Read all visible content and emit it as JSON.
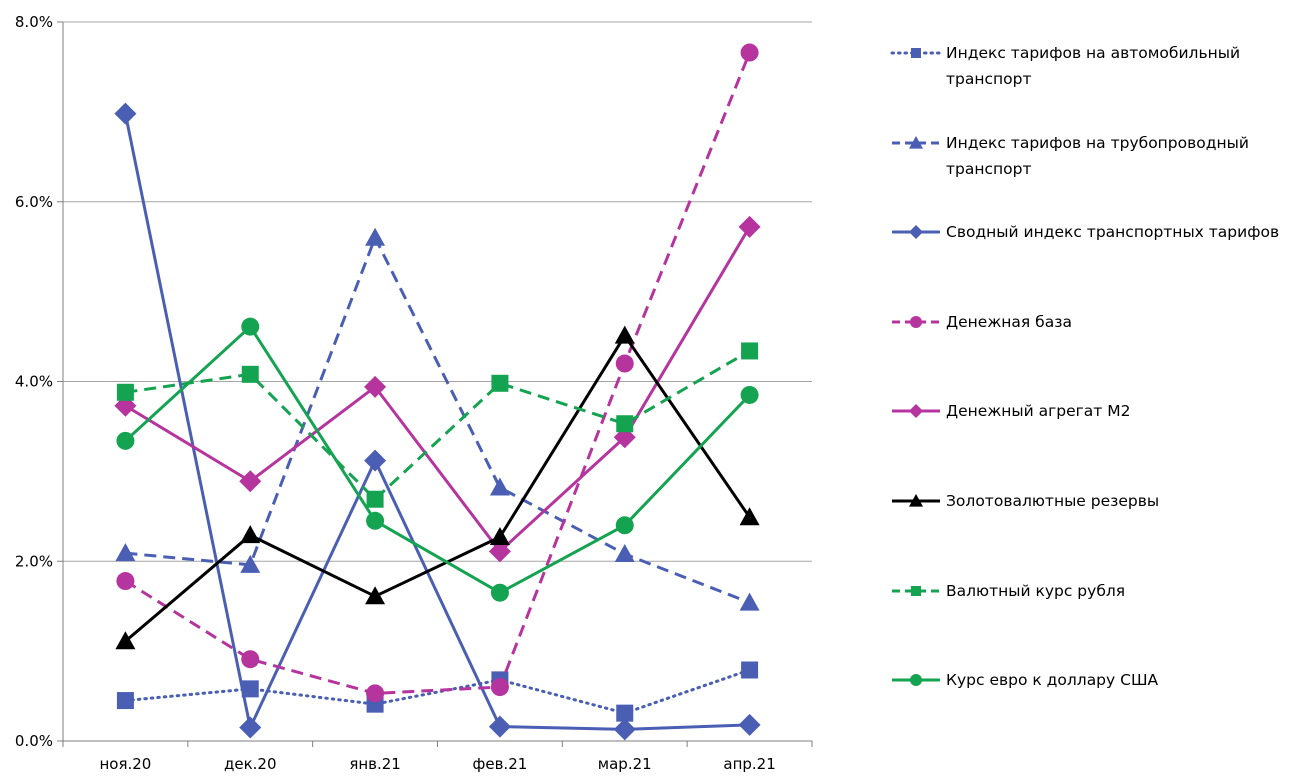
{
  "chart_data": {
    "type": "line",
    "title": "",
    "xlabel": "",
    "ylabel": "",
    "categories": [
      "ноя.20",
      "дек.20",
      "янв.21",
      "фев.21",
      "мар.21",
      "апр.21"
    ],
    "y_ticks": [
      "0.0%",
      "2.0%",
      "4.0%",
      "6.0%",
      "8.0%"
    ],
    "ylim": [
      0,
      8
    ],
    "grid": true,
    "legend_position": "right",
    "series": [
      {
        "name": "Индекс тарифов на автомобильный транспорт",
        "values": [
          0.45,
          0.58,
          0.41,
          0.68,
          0.31,
          0.79
        ],
        "color": "#4a5fb4",
        "dash": "dotted",
        "marker": "square"
      },
      {
        "name": "Индекс тарифов на трубопроводный транспорт",
        "values": [
          2.09,
          1.96,
          5.6,
          2.82,
          2.08,
          1.54
        ],
        "color": "#4a5fb4",
        "dash": "dashed",
        "marker": "triangle"
      },
      {
        "name": "Сводный индекс транспортных тарифов",
        "values": [
          6.98,
          0.15,
          3.12,
          0.16,
          0.13,
          0.18
        ],
        "color": "#4a5fb4",
        "dash": "solid",
        "marker": "diamond"
      },
      {
        "name": "Денежная база",
        "values": [
          1.78,
          0.91,
          0.53,
          0.6,
          4.2,
          7.66
        ],
        "color": "#b5349d",
        "dash": "dashed",
        "marker": "circle"
      },
      {
        "name": "Денежный агрегат М2",
        "values": [
          3.73,
          2.89,
          3.94,
          2.11,
          3.38,
          5.72
        ],
        "color": "#b5349d",
        "dash": "solid",
        "marker": "diamond"
      },
      {
        "name": "Золотовалютные резервы",
        "values": [
          1.11,
          2.29,
          1.61,
          2.27,
          4.51,
          2.49
        ],
        "color": "#000000",
        "dash": "solid",
        "marker": "triangle"
      },
      {
        "name": "Валютный курс рубля",
        "values": [
          3.88,
          4.08,
          2.69,
          3.98,
          3.53,
          4.34
        ],
        "color": "#14a350",
        "dash": "dashed",
        "marker": "square"
      },
      {
        "name": "Курс евро к доллару США",
        "values": [
          3.34,
          4.61,
          2.45,
          1.65,
          2.4,
          3.85
        ],
        "color": "#14a350",
        "dash": "solid",
        "marker": "circle"
      }
    ]
  }
}
